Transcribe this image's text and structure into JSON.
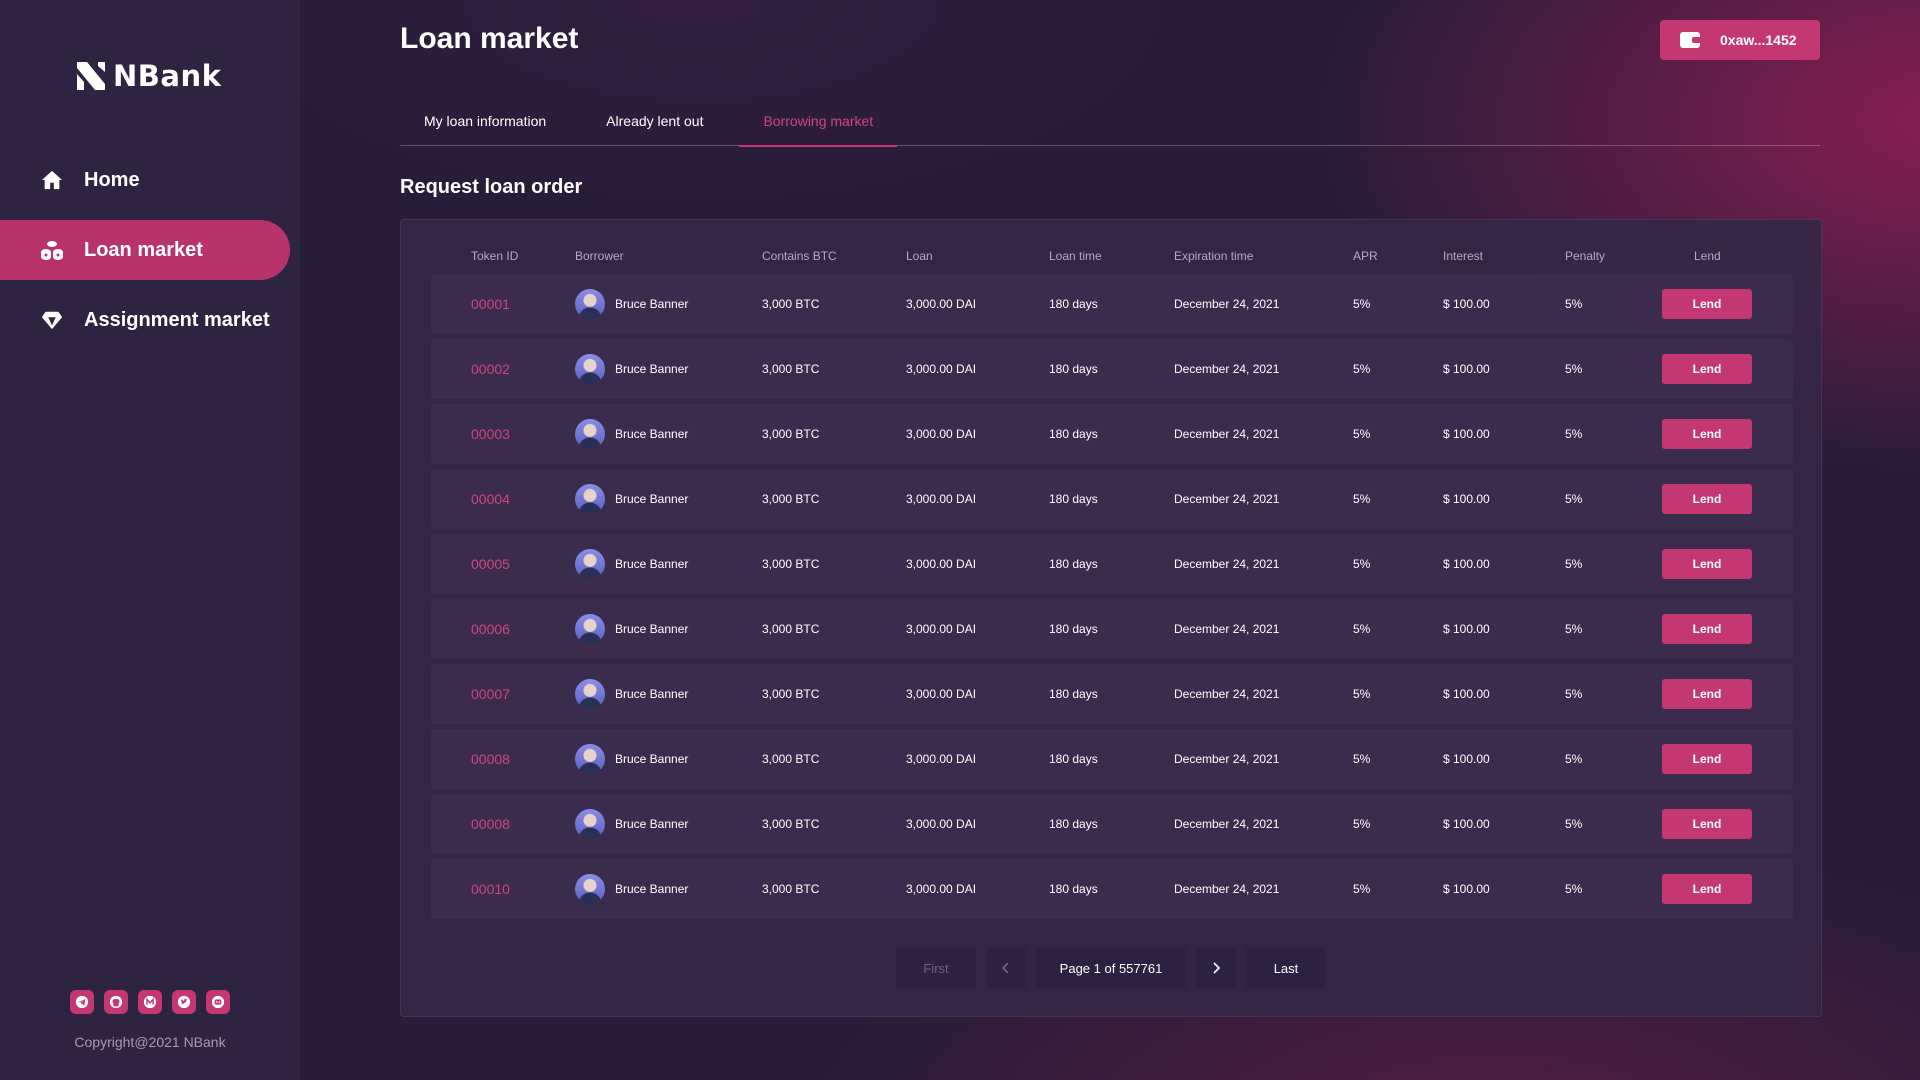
{
  "app": {
    "name": "NBank"
  },
  "sidebar": {
    "items": [
      {
        "label": "Home",
        "icon": "home-icon",
        "active": false
      },
      {
        "label": "Loan market",
        "icon": "coins-icon",
        "active": true
      },
      {
        "label": "Assignment market",
        "icon": "diamond-icon",
        "active": false
      }
    ],
    "socials": [
      "telegram-icon",
      "github-icon",
      "medium-icon",
      "twitter-icon",
      "discord-icon"
    ],
    "copyright": "Copyright@2021 NBank"
  },
  "header": {
    "title": "Loan market",
    "wallet_label": "0xaw...1452"
  },
  "tabs": [
    {
      "label": "My loan information",
      "active": false
    },
    {
      "label": "Already lent out",
      "active": false
    },
    {
      "label": "Borrowing market",
      "active": true
    }
  ],
  "section_title": "Request loan order",
  "table": {
    "columns": [
      "Token ID",
      "Borrower",
      "Contains BTC",
      "Loan",
      "Loan time",
      "Expiration time",
      "APR",
      "Interest",
      "Penalty",
      "Lend"
    ],
    "rows": [
      {
        "token_id": "00001",
        "borrower": "Bruce Banner",
        "btc": "3,000 BTC",
        "loan": "3,000.00 DAI",
        "loan_time": "180 days",
        "expiration": "December 24, 2021",
        "apr": "5%",
        "interest": "$ 100.00",
        "penalty": "5%",
        "action": "Lend"
      },
      {
        "token_id": "00002",
        "borrower": "Bruce Banner",
        "btc": "3,000 BTC",
        "loan": "3,000.00 DAI",
        "loan_time": "180 days",
        "expiration": "December 24, 2021",
        "apr": "5%",
        "interest": "$ 100.00",
        "penalty": "5%",
        "action": "Lend"
      },
      {
        "token_id": "00003",
        "borrower": "Bruce Banner",
        "btc": "3,000 BTC",
        "loan": "3,000.00 DAI",
        "loan_time": "180 days",
        "expiration": "December 24, 2021",
        "apr": "5%",
        "interest": "$ 100.00",
        "penalty": "5%",
        "action": "Lend"
      },
      {
        "token_id": "00004",
        "borrower": "Bruce Banner",
        "btc": "3,000 BTC",
        "loan": "3,000.00 DAI",
        "loan_time": "180 days",
        "expiration": "December 24, 2021",
        "apr": "5%",
        "interest": "$ 100.00",
        "penalty": "5%",
        "action": "Lend"
      },
      {
        "token_id": "00005",
        "borrower": "Bruce Banner",
        "btc": "3,000 BTC",
        "loan": "3,000.00 DAI",
        "loan_time": "180 days",
        "expiration": "December 24, 2021",
        "apr": "5%",
        "interest": "$ 100.00",
        "penalty": "5%",
        "action": "Lend"
      },
      {
        "token_id": "00006",
        "borrower": "Bruce Banner",
        "btc": "3,000 BTC",
        "loan": "3,000.00 DAI",
        "loan_time": "180 days",
        "expiration": "December 24, 2021",
        "apr": "5%",
        "interest": "$ 100.00",
        "penalty": "5%",
        "action": "Lend"
      },
      {
        "token_id": "00007",
        "borrower": "Bruce Banner",
        "btc": "3,000 BTC",
        "loan": "3,000.00 DAI",
        "loan_time": "180 days",
        "expiration": "December 24, 2021",
        "apr": "5%",
        "interest": "$ 100.00",
        "penalty": "5%",
        "action": "Lend"
      },
      {
        "token_id": "00008",
        "borrower": "Bruce Banner",
        "btc": "3,000 BTC",
        "loan": "3,000.00 DAI",
        "loan_time": "180 days",
        "expiration": "December 24, 2021",
        "apr": "5%",
        "interest": "$ 100.00",
        "penalty": "5%",
        "action": "Lend"
      },
      {
        "token_id": "00008",
        "borrower": "Bruce Banner",
        "btc": "3,000 BTC",
        "loan": "3,000.00 DAI",
        "loan_time": "180 days",
        "expiration": "December 24, 2021",
        "apr": "5%",
        "interest": "$ 100.00",
        "penalty": "5%",
        "action": "Lend"
      },
      {
        "token_id": "00010",
        "borrower": "Bruce Banner",
        "btc": "3,000 BTC",
        "loan": "3,000.00 DAI",
        "loan_time": "180 days",
        "expiration": "December 24, 2021",
        "apr": "5%",
        "interest": "$ 100.00",
        "penalty": "5%",
        "action": "Lend"
      }
    ]
  },
  "pagination": {
    "first": "First",
    "prev_icon": "chevron-left-icon",
    "page_info": "Page 1 of 557761",
    "next_icon": "chevron-right-icon",
    "last": "Last"
  },
  "colors": {
    "accent": "#c43872",
    "accent_text": "#d0457f",
    "sidebar_bg": "#2e2340",
    "page_bg": "#281d38",
    "row_bg": "#3b2c4e"
  }
}
